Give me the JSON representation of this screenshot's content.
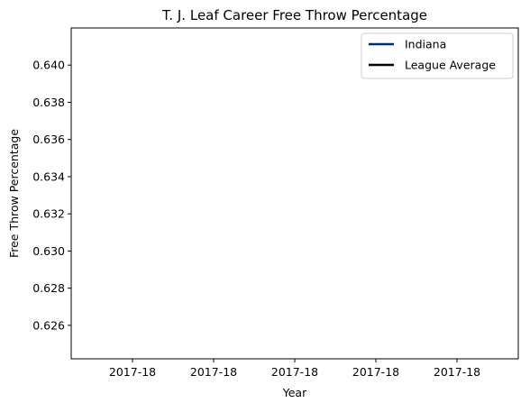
{
  "chart_data": {
    "type": "line",
    "title": "T. J. Leaf Career Free Throw Percentage",
    "xlabel": "Year",
    "ylabel": "Free Throw Percentage",
    "x_tick_labels": [
      "2017-18",
      "2017-18",
      "2017-18",
      "2017-18",
      "2017-18"
    ],
    "ylim": [
      0.6242,
      0.642
    ],
    "y_ticks": [
      0.626,
      0.628,
      0.63,
      0.632,
      0.634,
      0.636,
      0.638,
      0.64
    ],
    "y_tick_labels": [
      "0.626",
      "0.628",
      "0.630",
      "0.632",
      "0.634",
      "0.636",
      "0.638",
      "0.640"
    ],
    "grid": false,
    "legend_position": "top-right",
    "series": [
      {
        "name": "Indiana",
        "color": "#002d62",
        "x": [],
        "y": []
      },
      {
        "name": "League Average",
        "color": "#000000",
        "x": [],
        "y": []
      }
    ]
  }
}
